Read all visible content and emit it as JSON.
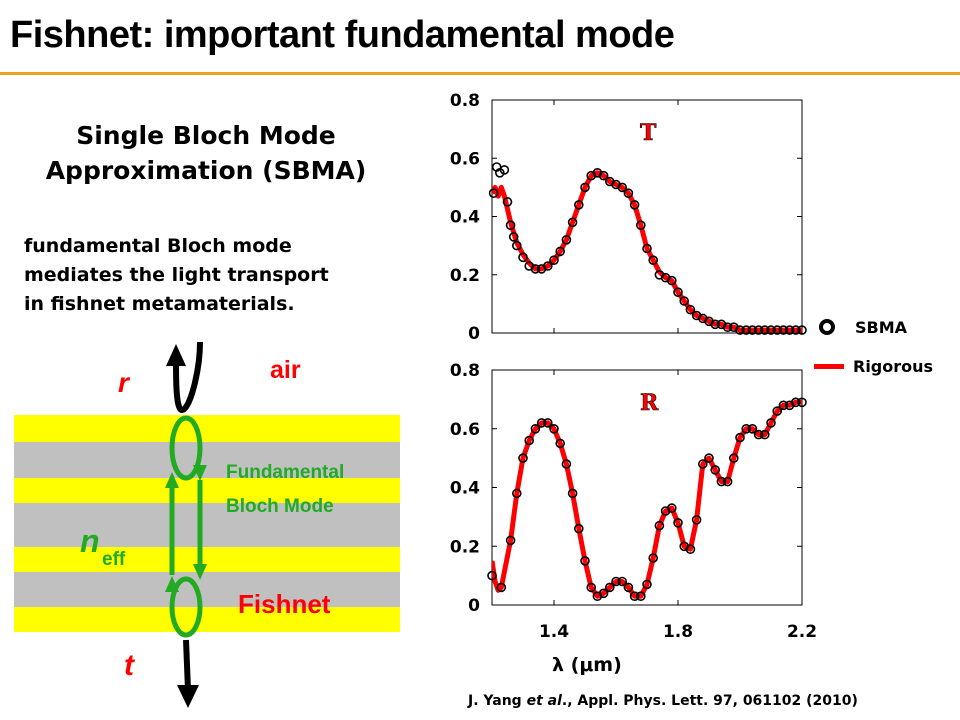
{
  "slide": {
    "title": "Fishnet: important fundamental mode",
    "subtitle_line1": "Single Bloch Mode",
    "subtitle_line2": "Approximation (SBMA)",
    "desc_line1": "fundamental Bloch mode",
    "desc_line2": "mediates the light transport",
    "desc_line3": "in fishnet metamaterials.",
    "accent_color": "#f0a020"
  },
  "diagram": {
    "label_r": "r",
    "label_t": "t",
    "label_air": "air",
    "label_neff_main": "n",
    "label_neff_sub": "eff",
    "label_mode_line1": "Fundamental",
    "label_mode_line2": "Bloch Mode",
    "label_fishnet": "Fishnet",
    "colors": {
      "metal": "#ffff00",
      "dielectric": "#c0c0c0",
      "red": "#ff0000",
      "green": "#22aa22"
    },
    "icons": [
      "curved-arrow-icon",
      "down-arrow-icon",
      "green-arrow-icon"
    ]
  },
  "legend": {
    "sbma": "SBMA",
    "rigorous": "Rigorous",
    "sbma_marker": "open-circle",
    "rigorous_color": "#ff0000"
  },
  "xaxis_label": "λ (μm)",
  "citation": {
    "author": "J. Yang ",
    "etal": "et al",
    "rest": "., Appl. Phys. Lett. 97, 061102 (2010)"
  },
  "chart_data": [
    {
      "type": "line",
      "title": "T",
      "xlabel": "λ (μm)",
      "ylabel": "",
      "xlim": [
        1.2,
        2.2
      ],
      "ylim": [
        0,
        0.8
      ],
      "xticks": [
        "1.4",
        "1.8",
        "2.2"
      ],
      "yticks": [
        "0",
        "0.2",
        "0.4",
        "0.6",
        "0.8"
      ],
      "show_xticklabels": false,
      "series": [
        {
          "name": "SBMA",
          "marker": "open-circle",
          "x": [
            1.205,
            1.215,
            1.225,
            1.24,
            1.25,
            1.26,
            1.27,
            1.28,
            1.3,
            1.32,
            1.34,
            1.36,
            1.38,
            1.4,
            1.42,
            1.44,
            1.46,
            1.48,
            1.5,
            1.52,
            1.54,
            1.56,
            1.58,
            1.6,
            1.62,
            1.64,
            1.66,
            1.68,
            1.7,
            1.72,
            1.74,
            1.76,
            1.78,
            1.8,
            1.82,
            1.84,
            1.86,
            1.88,
            1.9,
            1.92,
            1.94,
            1.96,
            1.98,
            2.0,
            2.02,
            2.04,
            2.06,
            2.08,
            2.1,
            2.12,
            2.14,
            2.16,
            2.18,
            2.2
          ],
          "y": [
            0.48,
            0.57,
            0.55,
            0.56,
            0.45,
            0.37,
            0.33,
            0.3,
            0.26,
            0.23,
            0.22,
            0.22,
            0.23,
            0.25,
            0.28,
            0.32,
            0.38,
            0.44,
            0.5,
            0.54,
            0.55,
            0.54,
            0.52,
            0.51,
            0.5,
            0.48,
            0.44,
            0.37,
            0.29,
            0.25,
            0.2,
            0.19,
            0.18,
            0.14,
            0.11,
            0.08,
            0.06,
            0.05,
            0.04,
            0.03,
            0.03,
            0.02,
            0.02,
            0.01,
            0.01,
            0.01,
            0.01,
            0.01,
            0.01,
            0.01,
            0.01,
            0.01,
            0.01,
            0.01
          ]
        },
        {
          "name": "Rigorous",
          "color": "#ff0000",
          "x": [
            1.2,
            1.21,
            1.22,
            1.23,
            1.24,
            1.26,
            1.28,
            1.3,
            1.32,
            1.34,
            1.36,
            1.38,
            1.4,
            1.42,
            1.44,
            1.46,
            1.48,
            1.5,
            1.52,
            1.54,
            1.56,
            1.58,
            1.6,
            1.62,
            1.64,
            1.66,
            1.68,
            1.7,
            1.72,
            1.74,
            1.76,
            1.78,
            1.8,
            1.82,
            1.84,
            1.86,
            1.88,
            1.9,
            1.92,
            1.94,
            1.96,
            1.98,
            2.0,
            2.02,
            2.04,
            2.06,
            2.08,
            2.1,
            2.12,
            2.14,
            2.16,
            2.18,
            2.2
          ],
          "y": [
            0.48,
            0.5,
            0.47,
            0.5,
            0.47,
            0.38,
            0.31,
            0.27,
            0.24,
            0.22,
            0.22,
            0.23,
            0.25,
            0.28,
            0.32,
            0.38,
            0.44,
            0.5,
            0.54,
            0.55,
            0.54,
            0.52,
            0.51,
            0.5,
            0.48,
            0.44,
            0.37,
            0.29,
            0.25,
            0.21,
            0.19,
            0.18,
            0.14,
            0.11,
            0.08,
            0.06,
            0.05,
            0.04,
            0.03,
            0.03,
            0.02,
            0.02,
            0.01,
            0.01,
            0.01,
            0.01,
            0.01,
            0.01,
            0.01,
            0.01,
            0.01,
            0.01,
            0.01
          ]
        }
      ]
    },
    {
      "type": "line",
      "title": "R",
      "xlabel": "λ (μm)",
      "ylabel": "",
      "xlim": [
        1.2,
        2.2
      ],
      "ylim": [
        0,
        0.8
      ],
      "xticks": [
        "1.4",
        "1.8",
        "2.2"
      ],
      "yticks": [
        "0",
        "0.2",
        "0.4",
        "0.6",
        "0.8"
      ],
      "show_xticklabels": true,
      "series": [
        {
          "name": "SBMA",
          "marker": "open-circle",
          "x": [
            1.2,
            1.23,
            1.26,
            1.28,
            1.3,
            1.32,
            1.34,
            1.36,
            1.38,
            1.4,
            1.42,
            1.44,
            1.46,
            1.48,
            1.5,
            1.52,
            1.54,
            1.56,
            1.58,
            1.6,
            1.62,
            1.64,
            1.66,
            1.68,
            1.7,
            1.72,
            1.74,
            1.76,
            1.78,
            1.8,
            1.82,
            1.84,
            1.86,
            1.88,
            1.9,
            1.92,
            1.94,
            1.96,
            1.98,
            2.0,
            2.02,
            2.04,
            2.06,
            2.08,
            2.1,
            2.12,
            2.14,
            2.16,
            2.18,
            2.2
          ],
          "y": [
            0.1,
            0.06,
            0.22,
            0.38,
            0.5,
            0.56,
            0.6,
            0.62,
            0.62,
            0.6,
            0.55,
            0.48,
            0.38,
            0.26,
            0.15,
            0.06,
            0.03,
            0.04,
            0.06,
            0.08,
            0.08,
            0.06,
            0.03,
            0.03,
            0.07,
            0.16,
            0.27,
            0.32,
            0.33,
            0.28,
            0.2,
            0.19,
            0.29,
            0.48,
            0.5,
            0.46,
            0.42,
            0.42,
            0.5,
            0.57,
            0.6,
            0.6,
            0.58,
            0.58,
            0.62,
            0.66,
            0.68,
            0.68,
            0.69,
            0.69
          ]
        },
        {
          "name": "Rigorous",
          "color": "#ff0000",
          "x": [
            1.2,
            1.21,
            1.22,
            1.23,
            1.26,
            1.28,
            1.3,
            1.32,
            1.34,
            1.36,
            1.38,
            1.4,
            1.42,
            1.44,
            1.46,
            1.48,
            1.5,
            1.52,
            1.54,
            1.56,
            1.58,
            1.6,
            1.62,
            1.64,
            1.66,
            1.68,
            1.7,
            1.72,
            1.74,
            1.76,
            1.78,
            1.8,
            1.82,
            1.84,
            1.86,
            1.88,
            1.9,
            1.92,
            1.94,
            1.96,
            1.98,
            2.0,
            2.02,
            2.04,
            2.06,
            2.08,
            2.1,
            2.12,
            2.14,
            2.16,
            2.18,
            2.2
          ],
          "y": [
            0.15,
            0.08,
            0.05,
            0.06,
            0.22,
            0.38,
            0.5,
            0.56,
            0.6,
            0.62,
            0.62,
            0.6,
            0.55,
            0.48,
            0.38,
            0.26,
            0.15,
            0.06,
            0.03,
            0.04,
            0.06,
            0.08,
            0.08,
            0.06,
            0.03,
            0.03,
            0.07,
            0.16,
            0.27,
            0.32,
            0.33,
            0.28,
            0.2,
            0.19,
            0.29,
            0.48,
            0.5,
            0.46,
            0.42,
            0.42,
            0.5,
            0.57,
            0.6,
            0.6,
            0.58,
            0.58,
            0.62,
            0.66,
            0.68,
            0.68,
            0.69,
            0.69
          ]
        }
      ]
    }
  ]
}
